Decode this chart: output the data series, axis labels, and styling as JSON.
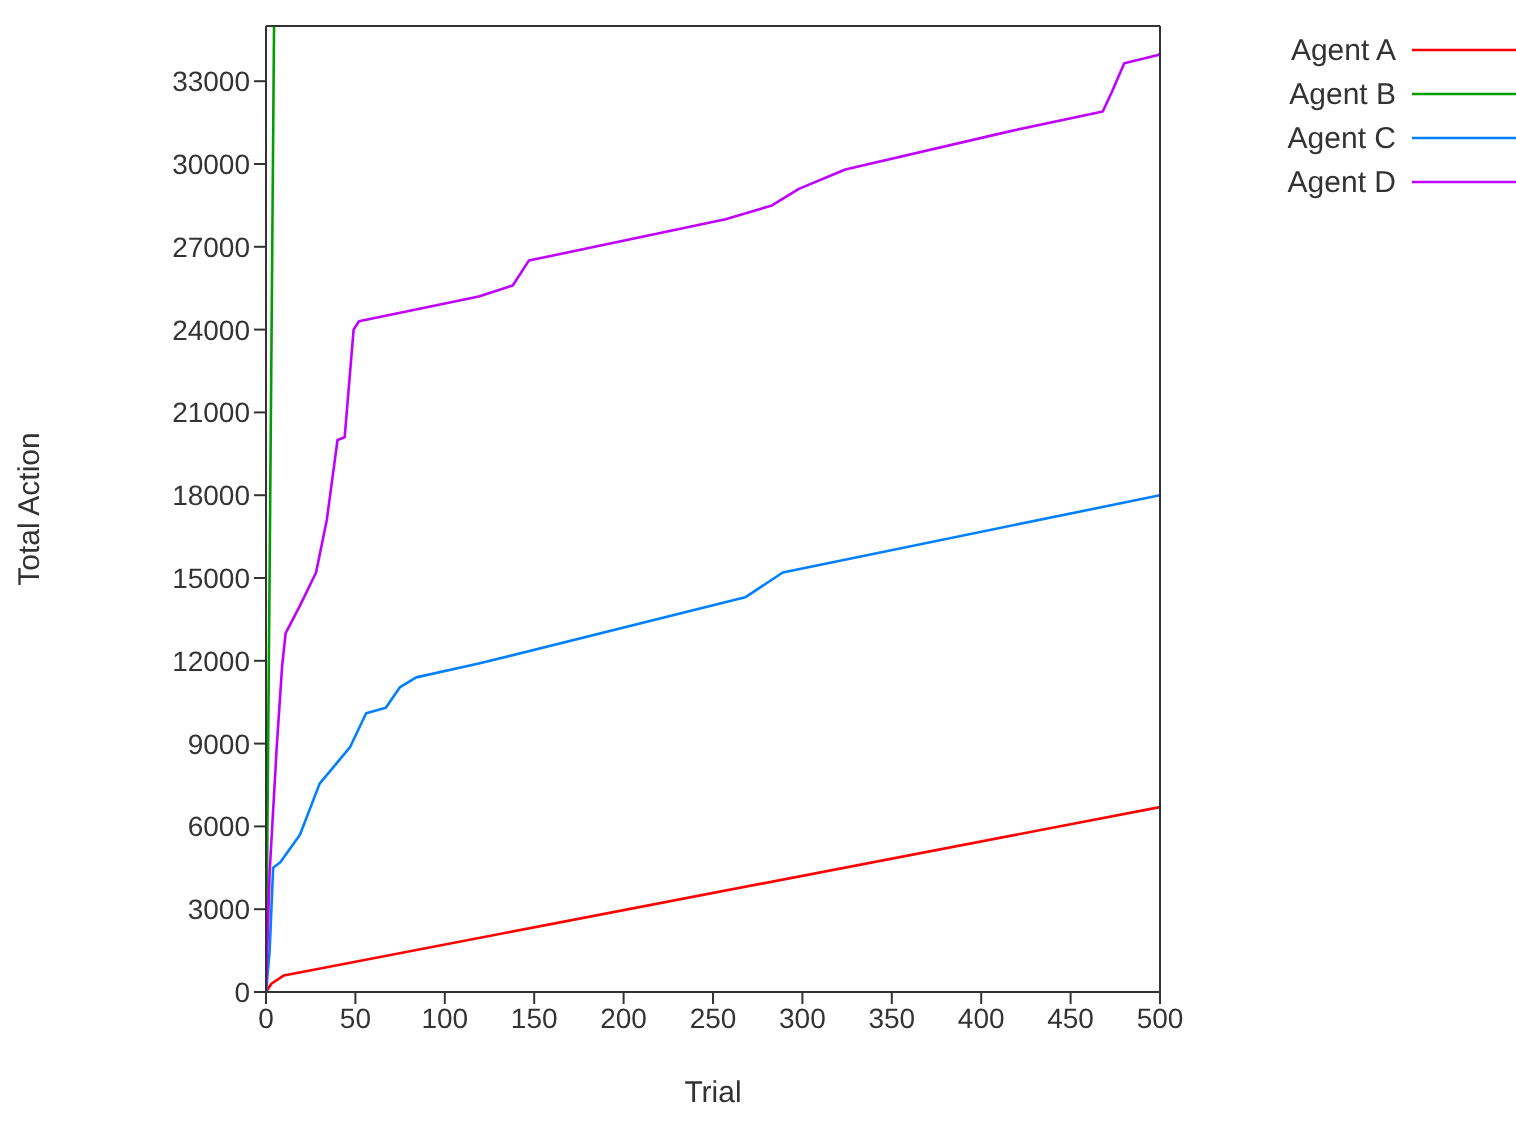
{
  "chart_data": {
    "type": "line",
    "xlabel": "Trial",
    "ylabel": "Total Action",
    "xlim": [
      0,
      500
    ],
    "ylim": [
      0,
      35000
    ],
    "xticks": [
      0,
      50,
      100,
      150,
      200,
      250,
      300,
      350,
      400,
      450,
      500
    ],
    "yticks": [
      0,
      3000,
      6000,
      9000,
      12000,
      15000,
      18000,
      21000,
      24000,
      27000,
      30000,
      33000
    ],
    "legend": "top right",
    "marker": "none",
    "series": [
      {
        "name": "Agent A",
        "color": "#ff0000",
        "x": [
          0,
          3,
          10,
          500
        ],
        "values": [
          0,
          300,
          600,
          6700
        ]
      },
      {
        "name": "Agent B",
        "color": "#00a000",
        "x": [
          0,
          2,
          4.5
        ],
        "values": [
          0,
          15000,
          35000
        ]
      },
      {
        "name": "Agent C",
        "color": "#0080ff",
        "x": [
          0,
          2,
          4,
          8,
          19,
          30,
          47,
          56,
          67,
          75,
          84,
          119,
          268,
          289,
          500
        ],
        "values": [
          0,
          1450,
          4500,
          4700,
          5700,
          7550,
          8870,
          10100,
          10300,
          11050,
          11400,
          11900,
          14300,
          15200,
          18000
        ]
      },
      {
        "name": "Agent D",
        "color": "#c000ff",
        "x": [
          0,
          2,
          6,
          9,
          11,
          19,
          28,
          34,
          40,
          44,
          49,
          52,
          119,
          138,
          147,
          257,
          283,
          298,
          324,
          417,
          468,
          473,
          480,
          499,
          500
        ],
        "values": [
          0,
          4300,
          8870,
          11800,
          13000,
          14000,
          15200,
          17100,
          20000,
          20100,
          24000,
          24300,
          25200,
          25600,
          26500,
          28000,
          28500,
          29100,
          29800,
          31200,
          31900,
          32600,
          33650,
          33950,
          34000
        ]
      }
    ]
  }
}
